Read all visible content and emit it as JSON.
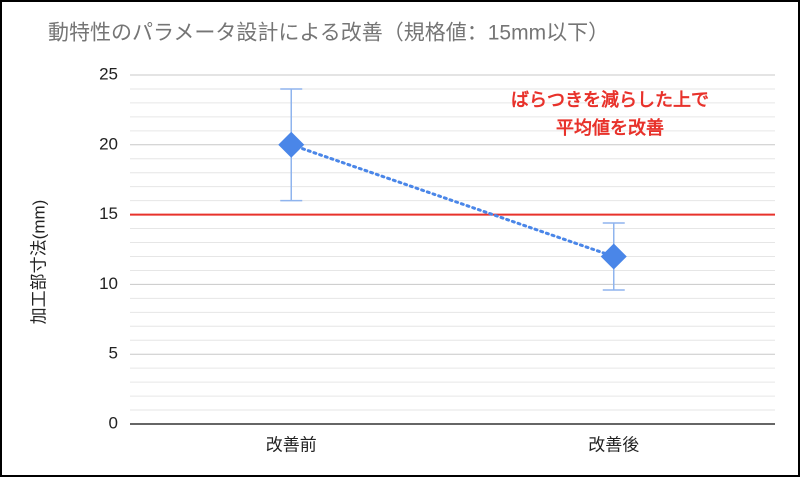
{
  "chart_data": {
    "type": "line",
    "title": "動特性のパラメータ設計による改善（規格値：15mm以下）",
    "y_label": "加工部寸法(mm)",
    "categories": [
      "改善前",
      "改善後"
    ],
    "values": [
      20,
      12
    ],
    "errors": [
      4,
      2.4
    ],
    "color": "#4a86e8",
    "line_style": "dotted",
    "marker": "diamond",
    "ylim": [
      0,
      25
    ],
    "yticks": [
      0,
      5,
      10,
      15,
      20,
      25
    ],
    "minor_yticks": [
      1,
      2,
      3,
      4,
      6,
      7,
      8,
      9,
      11,
      12,
      13,
      14,
      16,
      17,
      18,
      19,
      21,
      22,
      23,
      24
    ],
    "grid": true,
    "reference_line": {
      "value": 15,
      "color": "#e8322b"
    },
    "annotation": {
      "lines": [
        "ばらつきを減らした上で",
        "平均値を改善"
      ],
      "color": "#e8322b"
    }
  }
}
